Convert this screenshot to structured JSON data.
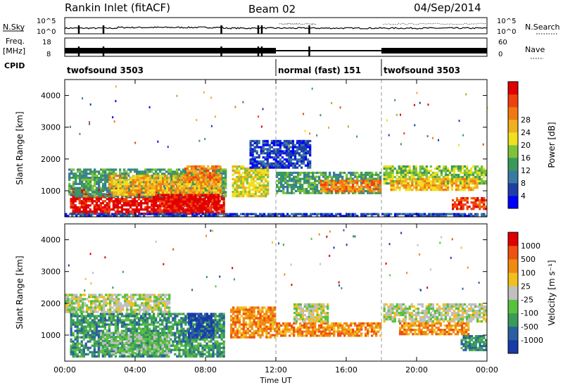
{
  "header": {
    "station": "Rankin Inlet (fitACF)",
    "beam": "Beam 02",
    "date": "04/Sep/2014"
  },
  "side_labels": {
    "nsky": "N.Sky",
    "nsearch": "N.Search",
    "freq_line1": "Freq.",
    "freq_line2": "[MHz]",
    "nave": "Nave",
    "cpid": "CPID"
  },
  "top_ticks": {
    "noise_left": [
      "10^5",
      "10^0"
    ],
    "noise_right": [
      "10^5",
      "10^0"
    ],
    "freq_left": [
      "18",
      "8"
    ],
    "nave_right": [
      "60",
      "0"
    ]
  },
  "cpid_segments": [
    {
      "label": "twofsound 3503",
      "start_hour": 0
    },
    {
      "label": "normal (fast) 151",
      "start_hour": 12
    },
    {
      "label": "twofsound 3503",
      "start_hour": 18
    }
  ],
  "chart_data": [
    {
      "type": "heatmap",
      "ylabel": "Slant Range [km]",
      "xlabel": "",
      "x_ticks": [
        "00:00",
        "04:00",
        "08:00",
        "12:00",
        "16:00",
        "20:00",
        "00:00"
      ],
      "y_ticks": [
        "1000",
        "2000",
        "3000",
        "4000"
      ],
      "ylim": [
        180,
        4500
      ],
      "colorbar": {
        "label": "Power [dB]",
        "ticks": [
          "4",
          "8",
          "12",
          "16",
          "20",
          "24",
          "28"
        ],
        "colors": [
          "#0000ff",
          "#1f3fa8",
          "#3a7aa0",
          "#3a9a5a",
          "#7fc23a",
          "#f0e020",
          "#f0b020",
          "#f07a10",
          "#f04010",
          "#e00000"
        ]
      },
      "regions": [
        {
          "t0": 0.3,
          "t1": 9.1,
          "r0": 250,
          "r1": 1100,
          "level": 9
        },
        {
          "t0": 0.2,
          "t1": 9.2,
          "r0": 800,
          "r1": 1700,
          "level": 3
        },
        {
          "t0": 2.5,
          "t1": 8.9,
          "r0": 850,
          "r1": 1500,
          "level": 6
        },
        {
          "t0": 5.0,
          "t1": 8.8,
          "r0": 280,
          "r1": 900,
          "level": 9
        },
        {
          "t0": 6.8,
          "t1": 8.9,
          "r0": 1250,
          "r1": 1800,
          "level": 7
        },
        {
          "t0": 9.5,
          "t1": 11.6,
          "r0": 800,
          "r1": 1800,
          "level": 5
        },
        {
          "t0": 12.0,
          "t1": 18.0,
          "r0": 900,
          "r1": 1600,
          "level": 3
        },
        {
          "t0": 14.5,
          "t1": 18.0,
          "r0": 950,
          "r1": 1350,
          "level": 7
        },
        {
          "t0": 18.1,
          "t1": 24.0,
          "r0": 1200,
          "r1": 1800,
          "level": 4
        },
        {
          "t0": 18.5,
          "t1": 23.5,
          "r0": 1000,
          "r1": 1400,
          "level": 6
        },
        {
          "t0": 22.0,
          "t1": 24.0,
          "r0": 400,
          "r1": 800,
          "level": 8
        },
        {
          "t0": 10.5,
          "t1": 14.0,
          "r0": 1700,
          "r1": 2600,
          "level": 1
        },
        {
          "t0": 0.0,
          "t1": 24.0,
          "r0": 180,
          "r1": 300,
          "level": 1
        }
      ]
    },
    {
      "type": "heatmap",
      "ylabel": "Slant Range [km]",
      "xlabel": "Time UT",
      "x_ticks": [
        "00:00",
        "04:00",
        "08:00",
        "12:00",
        "16:00",
        "20:00",
        "00:00"
      ],
      "y_ticks": [
        "1000",
        "2000",
        "3000",
        "4000"
      ],
      "ylim": [
        180,
        4500
      ],
      "colorbar": {
        "label": "Velocity [m s⁻¹]",
        "ticks": [
          "1000",
          "500",
          "100",
          "25",
          "-25",
          "-100",
          "-500",
          "-1000"
        ],
        "colors": [
          "#1a3aa8",
          "#2a60a0",
          "#3a9a5a",
          "#5ac040",
          "#c0c0c0",
          "#f0c020",
          "#f08a10",
          "#f05010",
          "#e00000"
        ]
      },
      "regions": [
        {
          "t0": 0.3,
          "t1": 9.1,
          "r0": 300,
          "r1": 1700,
          "level": 2
        },
        {
          "t0": 0.0,
          "t1": 6.0,
          "r0": 1700,
          "r1": 2300,
          "level": 4
        },
        {
          "t0": 2.0,
          "t1": 6.0,
          "r0": 400,
          "r1": 1100,
          "level": 3
        },
        {
          "t0": 7.0,
          "t1": 8.5,
          "r0": 900,
          "r1": 1700,
          "level": 0
        },
        {
          "t0": 9.4,
          "t1": 12.0,
          "r0": 900,
          "r1": 1900,
          "level": 6
        },
        {
          "t0": 12.0,
          "t1": 18.0,
          "r0": 950,
          "r1": 1400,
          "level": 6
        },
        {
          "t0": 13.0,
          "t1": 15.0,
          "r0": 1400,
          "r1": 2000,
          "level": 4
        },
        {
          "t0": 18.1,
          "t1": 24.0,
          "r0": 1400,
          "r1": 2000,
          "level": 4
        },
        {
          "t0": 19.0,
          "t1": 23.0,
          "r0": 1000,
          "r1": 1400,
          "level": 6
        },
        {
          "t0": 22.5,
          "t1": 24.0,
          "r0": 500,
          "r1": 1000,
          "level": 2
        }
      ]
    }
  ]
}
